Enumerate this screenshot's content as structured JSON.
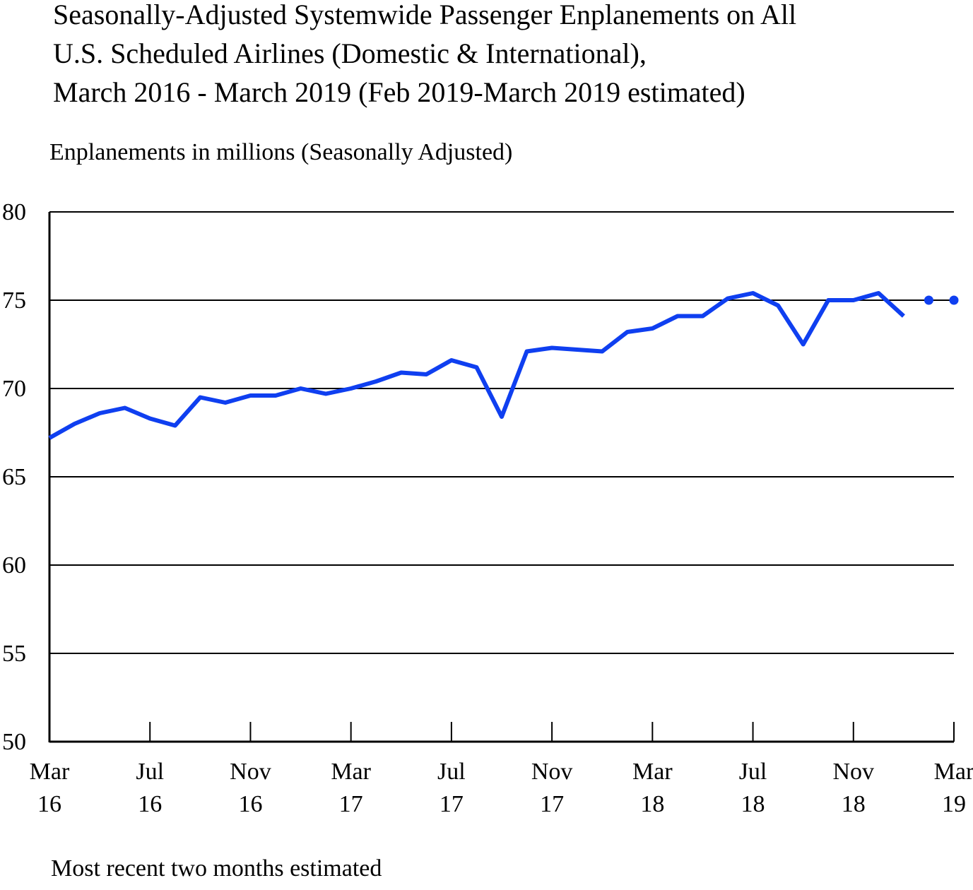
{
  "chart_data": {
    "type": "line",
    "title": [
      "Seasonally-Adjusted Systemwide Passenger Enplanements on All",
      "U.S. Scheduled Airlines (Domestic & International),",
      "March 2016 - March 2019 (Feb 2019-March 2019 estimated)"
    ],
    "y_label": "Enplanements in millions (Seasonally Adjusted)",
    "footnote": "Most recent two months estimated",
    "categories": [
      [
        "Mar",
        "16"
      ],
      null,
      null,
      null,
      [
        "Jul",
        "16"
      ],
      null,
      null,
      null,
      [
        "Nov",
        "16"
      ],
      null,
      null,
      null,
      [
        "Mar",
        "17"
      ],
      null,
      null,
      null,
      [
        "Jul",
        "17"
      ],
      null,
      null,
      null,
      [
        "Nov",
        "17"
      ],
      null,
      null,
      null,
      [
        "Mar",
        "18"
      ],
      null,
      null,
      null,
      [
        "Jul",
        "18"
      ],
      null,
      null,
      null,
      [
        "Nov",
        "18"
      ],
      null,
      null,
      null,
      [
        "Mar",
        "19"
      ]
    ],
    "series": [
      {
        "color": "#0f3ff0",
        "style": "solid",
        "values": [
          67.2,
          68.0,
          68.6,
          68.9,
          68.3,
          67.9,
          69.5,
          69.2,
          69.6,
          69.6,
          70.0,
          69.7,
          70.0,
          70.4,
          70.9,
          70.8,
          71.6,
          71.2,
          68.4,
          72.1,
          72.3,
          72.2,
          72.1,
          73.2,
          73.4,
          74.1,
          74.1,
          75.1,
          75.4,
          74.7,
          72.5,
          75.0,
          75.0,
          75.4,
          74.1,
          null,
          null
        ]
      },
      {
        "color": "#0f3ff0",
        "style": "dots",
        "values": [
          null,
          null,
          null,
          null,
          null,
          null,
          null,
          null,
          null,
          null,
          null,
          null,
          null,
          null,
          null,
          null,
          null,
          null,
          null,
          null,
          null,
          null,
          null,
          null,
          null,
          null,
          null,
          null,
          null,
          null,
          null,
          null,
          null,
          null,
          null,
          75.0,
          75.0
        ]
      }
    ],
    "ylim": [
      50,
      80
    ],
    "yticks": [
      50,
      55,
      60,
      65,
      70,
      75,
      80
    ],
    "grid": true
  }
}
